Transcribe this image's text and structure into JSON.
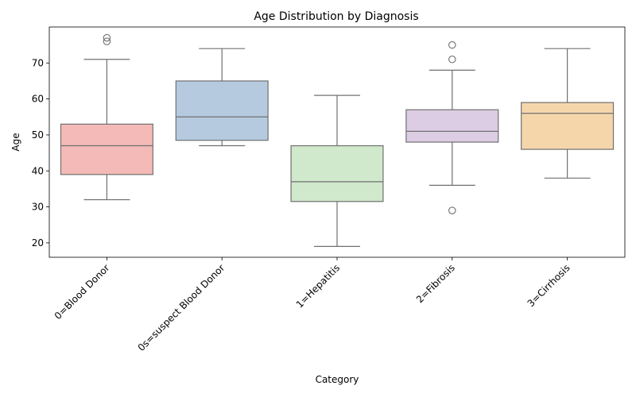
{
  "chart_data": {
    "type": "box",
    "title": "Age Distribution by Diagnosis",
    "xlabel": "Category",
    "ylabel": "Age",
    "ylim": [
      16,
      80
    ],
    "yticks": [
      20,
      30,
      40,
      50,
      60,
      70
    ],
    "grid": false,
    "legend": "none",
    "categories": [
      "0=Blood Donor",
      "0s=suspect Blood Donor",
      "1=Hepatitis",
      "2=Fibrosis",
      "3=Cirrhosis"
    ],
    "boxes": [
      {
        "category": "0=Blood Donor",
        "whisker_low": 32,
        "q1": 39,
        "median": 47,
        "q3": 53,
        "whisker_high": 71,
        "outliers": [
          76,
          77
        ],
        "color": "#f4bab7"
      },
      {
        "category": "0s=suspect Blood Donor",
        "whisker_low": 47,
        "q1": 48.5,
        "median": 55,
        "q3": 65,
        "whisker_high": 74,
        "outliers": [],
        "color": "#b5cadf"
      },
      {
        "category": "1=Hepatitis",
        "whisker_low": 19,
        "q1": 31.5,
        "median": 37,
        "q3": 47,
        "whisker_high": 61,
        "outliers": [],
        "color": "#d0e8cb"
      },
      {
        "category": "2=Fibrosis",
        "whisker_low": 36,
        "q1": 48,
        "median": 51,
        "q3": 57,
        "whisker_high": 68,
        "outliers": [
          29,
          71,
          75
        ],
        "color": "#dccde4"
      },
      {
        "category": "3=Cirrhosis",
        "whisker_low": 38,
        "q1": 46,
        "median": 56,
        "q3": 59,
        "whisker_high": 74,
        "outliers": [],
        "color": "#f5d6ab"
      }
    ]
  }
}
